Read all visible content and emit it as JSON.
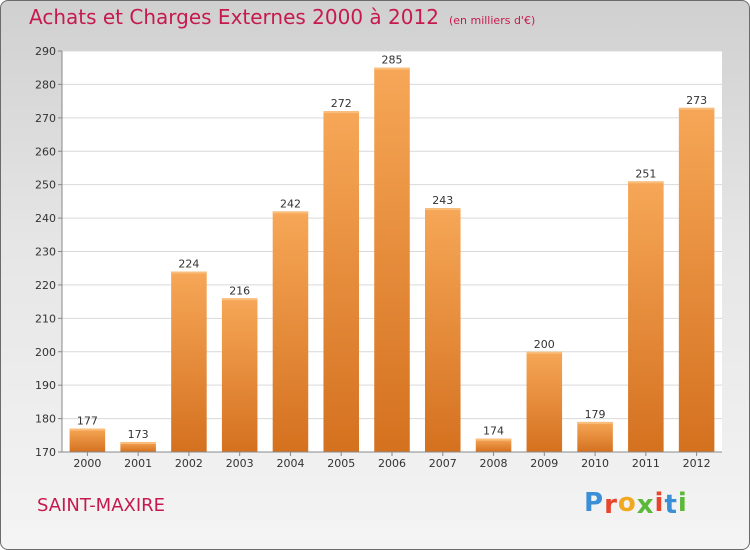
{
  "header": {
    "title": "Achats et Charges Externes 2000 à 2012",
    "subtitle": "(en milliers d'€)"
  },
  "footer": {
    "commune": "SAINT-MAXIRE",
    "logo_text": "Proxiti"
  },
  "colors": {
    "title": "#c61a4f",
    "bar_top": "#f6a757",
    "bar_bottom": "#d4711f",
    "grid": "#d9d9d9"
  },
  "chart_data": {
    "type": "bar",
    "title": "Achats et Charges Externes 2000 à 2012",
    "subtitle": "(en milliers d'€)",
    "categories": [
      "2000",
      "2001",
      "2002",
      "2003",
      "2004",
      "2005",
      "2006",
      "2007",
      "2008",
      "2009",
      "2010",
      "2011",
      "2012"
    ],
    "values": [
      177,
      173,
      224,
      216,
      242,
      272,
      285,
      243,
      174,
      200,
      179,
      251,
      273
    ],
    "ylim": [
      170,
      290
    ],
    "yticks": [
      170,
      180,
      190,
      200,
      210,
      220,
      230,
      240,
      250,
      260,
      270,
      280,
      290
    ],
    "grid": true,
    "data_labels": true,
    "xlabel": "",
    "ylabel": ""
  }
}
